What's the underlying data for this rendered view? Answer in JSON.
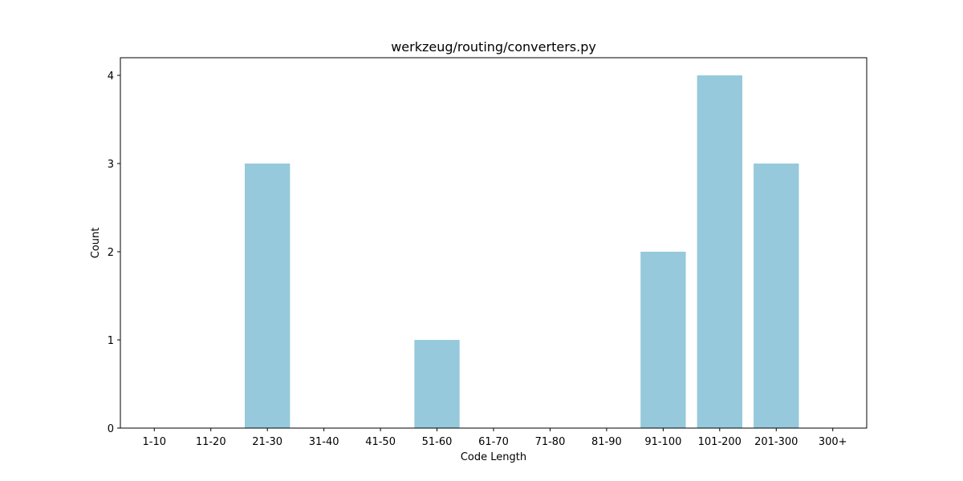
{
  "chart_data": {
    "type": "bar",
    "title": "werkzeug/routing/converters.py",
    "xlabel": "Code Length",
    "ylabel": "Count",
    "categories": [
      "1-10",
      "11-20",
      "21-30",
      "31-40",
      "41-50",
      "51-60",
      "61-70",
      "71-80",
      "81-90",
      "91-100",
      "101-200",
      "201-300",
      "300+"
    ],
    "values": [
      0,
      0,
      3,
      0,
      0,
      1,
      0,
      0,
      0,
      2,
      4,
      3,
      0
    ],
    "ylim": [
      0,
      4.2
    ],
    "yticks": [
      0,
      1,
      2,
      3,
      4
    ],
    "grid": false,
    "bar_color": "#96c9dc"
  }
}
